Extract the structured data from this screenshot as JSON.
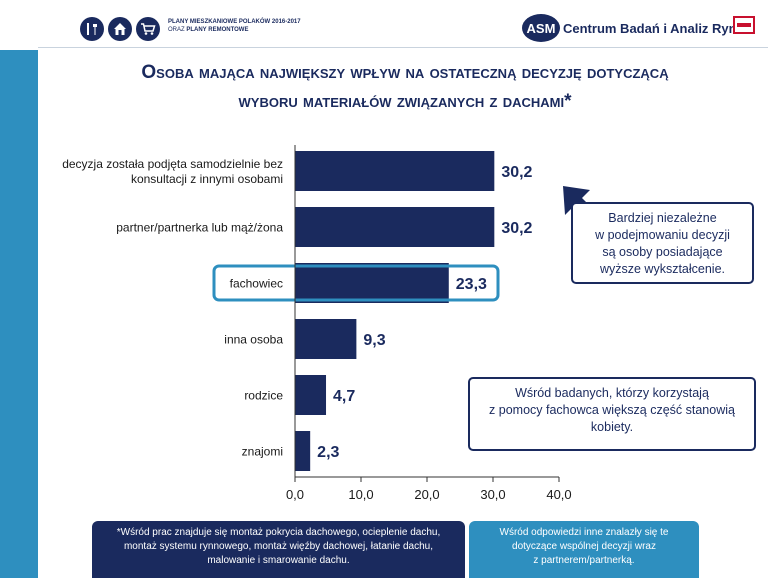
{
  "header": {
    "survey_line1": "PLANY MIESZKANIOWE POLAKÓW 2016-2017",
    "survey_line2_prefix": "ORAZ ",
    "survey_line2_bold": "PLANY REMONTOWE",
    "icons": [
      "tools-icon",
      "house-icon",
      "cart-icon"
    ],
    "asm_logo_text": "ASM",
    "company_name": "Centrum Badań i Analiz Rynku"
  },
  "title": {
    "line1": "Osoba mająca największy wpływ na ostateczną decyzję dotyczącą",
    "line2": "wyboru materiałów związanych z dachami*"
  },
  "chart_data": {
    "type": "bar",
    "orientation": "horizontal",
    "categories": [
      [
        "decyzja została podjęta samodzielnie bez",
        "konsultacji z innymi osobami"
      ],
      [
        "partner/partnerka lub mąż/żona"
      ],
      [
        "fachowiec"
      ],
      [
        "inna osoba"
      ],
      [
        "rodzice"
      ],
      [
        "znajomi"
      ]
    ],
    "values": [
      30.2,
      30.2,
      23.3,
      9.3,
      4.7,
      2.3
    ],
    "value_labels": [
      "30,2",
      "30,2",
      "23,3",
      "9,3",
      "4,7",
      "2,3"
    ],
    "xlim": [
      0,
      40
    ],
    "ticks": [
      "0,0",
      "10,0",
      "20,0",
      "30,0",
      "40,0"
    ],
    "tick_values": [
      0,
      10,
      20,
      30,
      40
    ],
    "highlighted_index": 2,
    "grid": false,
    "colors": {
      "bar": "#1a2a5e",
      "highlight": "#2e8fbf",
      "axis": "#333333"
    }
  },
  "callouts": {
    "first": [
      "Bardziej niezależne",
      "w podejmowaniu decyzji",
      "są osoby posiadające",
      "wyższe wykształcenie."
    ],
    "second": [
      "Wśród badanych, którzy korzystają",
      "z pomocy fachowca większą część stanowią",
      "kobiety."
    ]
  },
  "footnotes": {
    "left": [
      "*Wśród prac znajduje się montaż pokrycia dachowego, ocieplenie dachu,",
      "montaż systemu rynnowego, montaż więźby dachowej, łatanie dachu,",
      "malowanie i smarowanie dachu."
    ],
    "right": [
      "Wśród odpowiedzi inne znalazły się te",
      "dotyczące wspólnej decyzji  wraz",
      "z partnerem/partnerką."
    ]
  }
}
